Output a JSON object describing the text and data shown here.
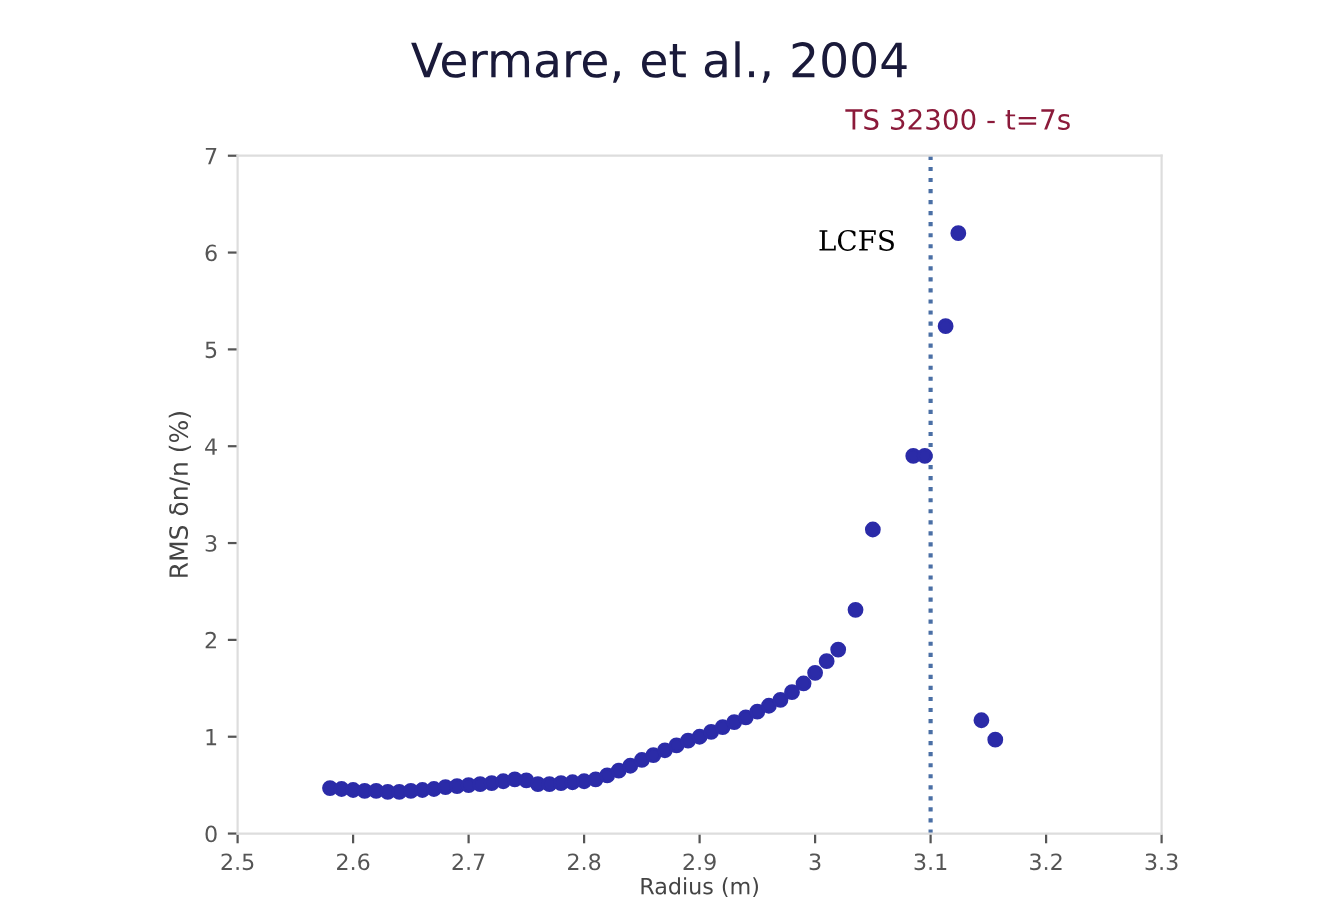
{
  "chart_data": {
    "type": "scatter",
    "title": "Vermare, et al., 2004",
    "xlabel": "Radius (m)",
    "ylabel": "RMS δn/n (%)",
    "annotations": [
      "TS 32300 - t=7s"
    ],
    "series": [
      {
        "color": "#2b2ba8",
        "x": [
          2.58,
          2.59,
          2.6,
          2.61,
          2.62,
          2.63,
          2.64,
          2.65,
          2.66,
          2.67,
          2.68,
          2.69,
          2.7,
          2.71,
          2.72,
          2.73,
          2.74,
          2.75,
          2.76,
          2.77,
          2.78,
          2.79,
          2.8,
          2.81,
          2.82,
          2.83,
          2.84,
          2.85,
          2.86,
          2.87,
          2.88,
          2.89,
          2.9,
          2.91,
          2.92,
          2.93,
          2.94,
          2.95,
          2.96,
          2.97,
          2.98,
          2.99,
          3.0,
          3.01,
          3.02,
          3.035,
          3.05,
          3.085,
          3.095,
          3.113,
          3.124,
          3.144,
          3.156
        ],
        "values": [
          0.47,
          0.46,
          0.45,
          0.44,
          0.44,
          0.43,
          0.43,
          0.44,
          0.45,
          0.46,
          0.48,
          0.49,
          0.5,
          0.51,
          0.52,
          0.54,
          0.56,
          0.55,
          0.51,
          0.51,
          0.52,
          0.53,
          0.54,
          0.56,
          0.6,
          0.65,
          0.7,
          0.76,
          0.81,
          0.86,
          0.91,
          0.96,
          1.0,
          1.05,
          1.1,
          1.15,
          1.2,
          1.26,
          1.32,
          1.38,
          1.46,
          1.55,
          1.66,
          1.78,
          1.9,
          2.31,
          3.14,
          3.9,
          3.9,
          5.24,
          6.2,
          1.17,
          0.97
        ]
      }
    ],
    "ref_lines": [
      {
        "axis": "x",
        "value": 3.1,
        "label": "LCFS",
        "color": "#4a6fa5",
        "line_style": "dotted"
      }
    ],
    "xlim": [
      2.5,
      3.3
    ],
    "xticks": [
      2.5,
      2.6,
      2.7,
      2.8,
      2.9,
      3,
      3.1,
      3.2,
      3.3
    ],
    "ylim": [
      0,
      7
    ],
    "yticks": [
      0,
      1,
      2,
      3,
      4,
      5,
      6,
      7
    ],
    "grid": false,
    "marker": "circle"
  }
}
